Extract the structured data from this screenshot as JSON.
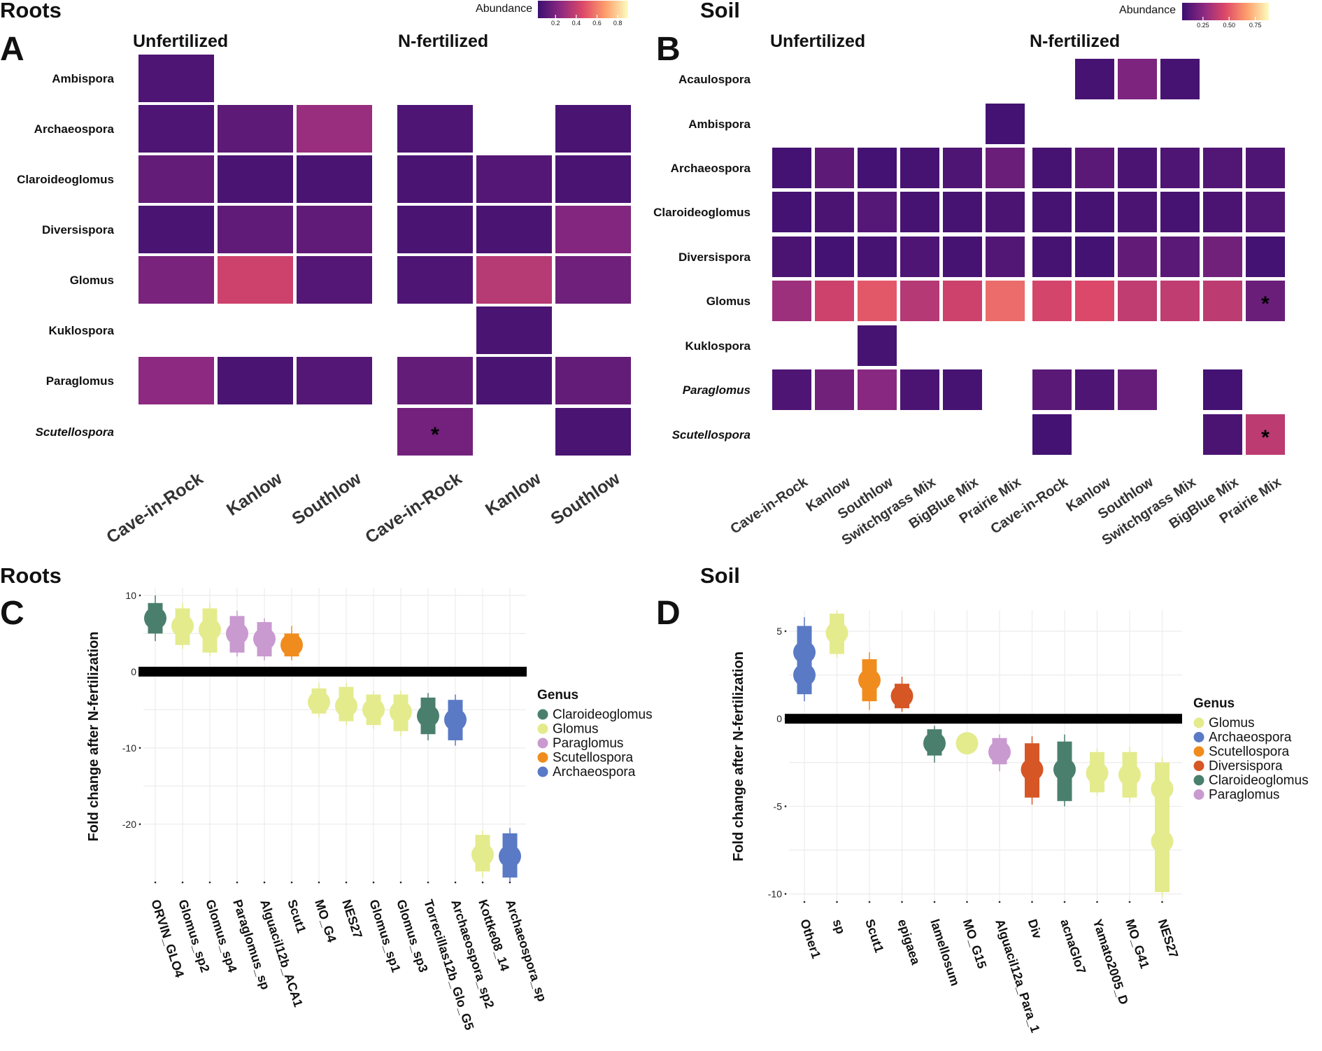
{
  "figure": {
    "panelA": {
      "section": "Roots",
      "letter": "A"
    },
    "panelB": {
      "section": "Soil",
      "letter": "B"
    },
    "panelC": {
      "section": "Roots",
      "letter": "C"
    },
    "panelD": {
      "section": "Soil",
      "letter": "D"
    }
  },
  "chart_data": [
    {
      "id": "A",
      "type": "heatmap",
      "title": "Roots",
      "legend_title": "Abundance",
      "legend_ticks": [
        "0.2",
        "0.4",
        "0.6",
        "0.8"
      ],
      "legend_range": [
        0.03,
        0.9
      ],
      "colors": {
        "low": "#3b0f70",
        "high": "#fcfdbf"
      },
      "groups": [
        "Unfertilized",
        "N-fertilized"
      ],
      "columns": [
        "Cave-in-Rock",
        "Kanlow",
        "Southlow"
      ],
      "rows": [
        "Ambispora",
        "Archaeospora",
        "Claroideoglomus",
        "Diversispora",
        "Glomus",
        "Kuklospora",
        "Paraglomus",
        "Scutellospora"
      ],
      "italic_rows": [
        "Scutellospora"
      ],
      "values": {
        "Unfertilized": [
          [
            0.08,
            null,
            null
          ],
          [
            0.08,
            0.12,
            0.28
          ],
          [
            0.14,
            0.07,
            0.07
          ],
          [
            0.07,
            0.13,
            0.13
          ],
          [
            0.2,
            0.42,
            0.1
          ],
          [
            null,
            null,
            null
          ],
          [
            0.25,
            0.07,
            0.1
          ],
          [
            null,
            null,
            null
          ]
        ],
        "N-fertilized": [
          [
            null,
            null,
            null
          ],
          [
            0.08,
            null,
            0.07
          ],
          [
            0.07,
            0.1,
            0.07
          ],
          [
            0.07,
            0.07,
            0.22
          ],
          [
            0.08,
            0.36,
            0.17
          ],
          [
            null,
            0.07,
            null
          ],
          [
            0.14,
            0.07,
            0.14
          ],
          [
            0.18,
            null,
            0.07
          ]
        ]
      },
      "annotations": [
        {
          "group": "N-fertilized",
          "row": "Scutellospora",
          "column": "Cave-in-Rock",
          "text": "*"
        }
      ]
    },
    {
      "id": "B",
      "type": "heatmap",
      "title": "Soil",
      "legend_title": "Abundance",
      "legend_ticks": [
        "0.25",
        "0.50",
        "0.75"
      ],
      "legend_range": [
        0.05,
        0.88
      ],
      "colors": {
        "low": "#3b0f70",
        "high": "#fcfdbf"
      },
      "groups": [
        "Unfertilized",
        "N-fertilized"
      ],
      "columns": [
        "Cave-in-Rock",
        "Kanlow",
        "Southlow",
        "Switchgrass Mix",
        "BigBlue Mix",
        "Prairie Mix"
      ],
      "rows": [
        "Acaulospora",
        "Ambispora",
        "Archaeospora",
        "Claroideoglomus",
        "Diversispora",
        "Glomus",
        "Kuklospora",
        "Paraglomus",
        "Scutellospora"
      ],
      "italic_rows": [
        "Paraglomus",
        "Scutellospora"
      ],
      "values": {
        "Unfertilized": [
          [
            null,
            null,
            null,
            null,
            null,
            null
          ],
          [
            null,
            null,
            null,
            null,
            null,
            0.07
          ],
          [
            0.07,
            0.14,
            0.07,
            0.08,
            0.1,
            0.17
          ],
          [
            0.07,
            0.09,
            0.12,
            0.08,
            0.08,
            0.09
          ],
          [
            0.09,
            0.07,
            0.08,
            0.1,
            0.08,
            0.11
          ],
          [
            0.3,
            0.42,
            0.5,
            0.36,
            0.42,
            0.55
          ],
          [
            null,
            null,
            0.08,
            null,
            null,
            null
          ],
          [
            0.1,
            0.19,
            0.25,
            0.09,
            0.08,
            null
          ],
          [
            null,
            null,
            null,
            null,
            null,
            null
          ]
        ],
        "N-fertilized": [
          [
            null,
            0.08,
            0.22,
            0.08,
            null,
            null
          ],
          [
            null,
            null,
            null,
            null,
            null,
            null
          ],
          [
            0.08,
            0.13,
            0.09,
            0.1,
            0.11,
            0.1
          ],
          [
            0.08,
            0.08,
            0.09,
            0.08,
            0.09,
            0.11
          ],
          [
            0.08,
            0.07,
            0.15,
            0.13,
            0.19,
            0.07
          ],
          [
            0.44,
            0.46,
            0.39,
            0.39,
            0.38,
            0.17
          ],
          [
            null,
            null,
            null,
            null,
            null,
            null
          ],
          [
            0.13,
            0.1,
            0.16,
            null,
            0.07,
            null
          ],
          [
            0.07,
            null,
            null,
            null,
            0.09,
            0.38
          ]
        ]
      },
      "annotations": [
        {
          "group": "N-fertilized",
          "row": "Glomus",
          "column": "Prairie Mix",
          "text": "*"
        },
        {
          "group": "N-fertilized",
          "row": "Scutellospora",
          "column": "Prairie Mix",
          "text": "*"
        }
      ]
    },
    {
      "id": "C",
      "type": "scatter",
      "title": "Roots",
      "ylabel": "Fold change after N-fertilization",
      "ylim": [
        -28,
        11
      ],
      "yticks": [
        10,
        0,
        -10,
        -20
      ],
      "legend_title": "Genus",
      "legend": [
        {
          "name": "Claroideoglomus",
          "color": "#4a7f6e"
        },
        {
          "name": "Glomus",
          "color": "#e4eb8d"
        },
        {
          "name": "Paraglomus",
          "color": "#c99ad0"
        },
        {
          "name": "Scutellospora",
          "color": "#f08c1e"
        },
        {
          "name": "Archaeospora",
          "color": "#5a7ac6"
        }
      ],
      "categories": [
        "ORVIN_GLO4",
        "Glomus_sp2",
        "Glomus_sp4",
        "Paraglomus_sp",
        "Alguacil12b_ACA1",
        "Scut1",
        "MO_G4",
        "NES27",
        "Glomus_sp1",
        "Glomus_sp3",
        "Torrecillas12b_Glo_G5",
        "Archaeospora_sp2",
        "Kottke08_14",
        "Archaeospora_sp"
      ],
      "points": [
        {
          "category": "ORVIN_GLO4",
          "genus": "Claroideoglomus",
          "y": 7,
          "lo": 5,
          "hi": 9,
          "whisker": [
            4,
            10
          ]
        },
        {
          "category": "Glomus_sp2",
          "genus": "Glomus",
          "y": 6,
          "lo": 3.5,
          "hi": 8.3,
          "whisker": [
            3,
            9
          ]
        },
        {
          "category": "Glomus_sp4",
          "genus": "Glomus",
          "y": 5.5,
          "lo": 2.5,
          "hi": 8.3,
          "whisker": [
            2,
            9
          ]
        },
        {
          "category": "Paraglomus_sp",
          "genus": "Paraglomus",
          "y": 5,
          "lo": 2.5,
          "hi": 7.3,
          "whisker": [
            2,
            8
          ]
        },
        {
          "category": "Alguacil12b_ACA1",
          "genus": "Paraglomus",
          "y": 4.3,
          "lo": 2,
          "hi": 6.5,
          "whisker": [
            1.5,
            7
          ]
        },
        {
          "category": "Scut1",
          "genus": "Scutellospora",
          "y": 3.5,
          "lo": 2,
          "hi": 5,
          "whisker": [
            1.5,
            6
          ]
        },
        {
          "category": "MO_G4",
          "genus": "Glomus",
          "y": -4,
          "lo": -5.5,
          "hi": -2.2,
          "whisker": [
            -6,
            -1.5
          ]
        },
        {
          "category": "NES27",
          "genus": "Glomus",
          "y": -4.5,
          "lo": -6.5,
          "hi": -2,
          "whisker": [
            -7,
            -1.5
          ]
        },
        {
          "category": "Glomus_sp1",
          "genus": "Glomus",
          "y": -5,
          "lo": -7,
          "hi": -3,
          "whisker": [
            -7.5,
            -2.5
          ]
        },
        {
          "category": "Glomus_sp3",
          "genus": "Glomus",
          "y": -5.3,
          "lo": -7.8,
          "hi": -3,
          "whisker": [
            -8.5,
            -2.5
          ]
        },
        {
          "category": "Torrecillas12b_Glo_G5",
          "genus": "Claroideoglomus",
          "y": -5.8,
          "lo": -8.2,
          "hi": -3.4,
          "whisker": [
            -9,
            -2.8
          ]
        },
        {
          "category": "Archaeospora_sp2",
          "genus": "Archaeospora",
          "y": -6.3,
          "lo": -9,
          "hi": -3.7,
          "whisker": [
            -9.7,
            -3
          ]
        },
        {
          "category": "Kottke08_14",
          "genus": "Glomus",
          "y": -24,
          "lo": -26.2,
          "hi": -21.4,
          "whisker": [
            -27,
            -20.8
          ]
        },
        {
          "category": "Archaeospora_sp",
          "genus": "Archaeospora",
          "y": -24.2,
          "lo": -27,
          "hi": -21.2,
          "whisker": [
            -27.5,
            -20.5
          ]
        }
      ]
    },
    {
      "id": "D",
      "type": "scatter",
      "title": "Soil",
      "ylabel": "Fold change after N-fertilization",
      "ylim": [
        -10.5,
        6.2
      ],
      "yticks": [
        5,
        0,
        -5,
        -10
      ],
      "legend_title": "Genus",
      "legend": [
        {
          "name": "Glomus",
          "color": "#e4eb8d"
        },
        {
          "name": "Archaeospora",
          "color": "#5a7ac6"
        },
        {
          "name": "Scutellospora",
          "color": "#f08c1e"
        },
        {
          "name": "Diversispora",
          "color": "#d65626"
        },
        {
          "name": "Claroideoglomus",
          "color": "#4a7f6e"
        },
        {
          "name": "Paraglomus",
          "color": "#c99ad0"
        }
      ],
      "categories": [
        "Other1",
        "sp",
        "Scut1",
        "epigaea",
        "lamellosum",
        "MO_G15",
        "Alguacil12a_Para_1",
        "Div",
        "acnaGlo7",
        "Yamato2005_D",
        "MO_G41",
        "NES27"
      ],
      "points": [
        {
          "category": "Other1",
          "genus": "Archaeospora",
          "y": 3.8,
          "lo": 2.5,
          "hi": 5.3,
          "whisker": [
            2,
            5.8
          ]
        },
        {
          "category": "Other1",
          "genus": "Archaeospora",
          "y": 2.5,
          "lo": 1.4,
          "hi": 3.8,
          "whisker": [
            1,
            4.2
          ]
        },
        {
          "category": "sp",
          "genus": "Glomus",
          "y": 4.9,
          "lo": 3.7,
          "hi": 6,
          "whisker": [
            3.5,
            6.2
          ]
        },
        {
          "category": "Scut1",
          "genus": "Scutellospora",
          "y": 2.2,
          "lo": 1,
          "hi": 3.4,
          "whisker": [
            0.5,
            3.8
          ]
        },
        {
          "category": "epigaea",
          "genus": "Diversispora",
          "y": 1.3,
          "lo": 0.6,
          "hi": 2,
          "whisker": [
            0.4,
            2.4
          ]
        },
        {
          "category": "lamellosum",
          "genus": "Claroideoglomus",
          "y": -1.4,
          "lo": -2.1,
          "hi": -0.6,
          "whisker": [
            -2.5,
            -0.4
          ]
        },
        {
          "category": "MO_G15",
          "genus": "Glomus",
          "y": -1.4,
          "lo": -1.8,
          "hi": -1,
          "whisker": [
            -2,
            -0.8
          ]
        },
        {
          "category": "Alguacil12a_Para_1",
          "genus": "Paraglomus",
          "y": -1.9,
          "lo": -2.6,
          "hi": -1.1,
          "whisker": [
            -3,
            -0.9
          ]
        },
        {
          "category": "Div",
          "genus": "Diversispora",
          "y": -2.9,
          "lo": -4.5,
          "hi": -1.4,
          "whisker": [
            -4.9,
            -1
          ]
        },
        {
          "category": "acnaGlo7",
          "genus": "Claroideoglomus",
          "y": -2.9,
          "lo": -4.7,
          "hi": -1.3,
          "whisker": [
            -5,
            -0.9
          ]
        },
        {
          "category": "Yamato2005_D",
          "genus": "Glomus",
          "y": -3.1,
          "lo": -4.2,
          "hi": -1.9,
          "whisker": [
            -4.4,
            -1.7
          ]
        },
        {
          "category": "MO_G41",
          "genus": "Glomus",
          "y": -3.2,
          "lo": -4.5,
          "hi": -1.9,
          "whisker": [
            -4.8,
            -1.6
          ]
        },
        {
          "category": "NES27",
          "genus": "Glomus",
          "y": -4,
          "lo": -5.3,
          "hi": -2.5,
          "whisker": [
            -5.6,
            -2.2
          ]
        },
        {
          "category": "NES27",
          "genus": "Glomus",
          "y": -7,
          "lo": -9.9,
          "hi": -4.3,
          "whisker": [
            -10.2,
            -3.9
          ]
        }
      ]
    }
  ]
}
